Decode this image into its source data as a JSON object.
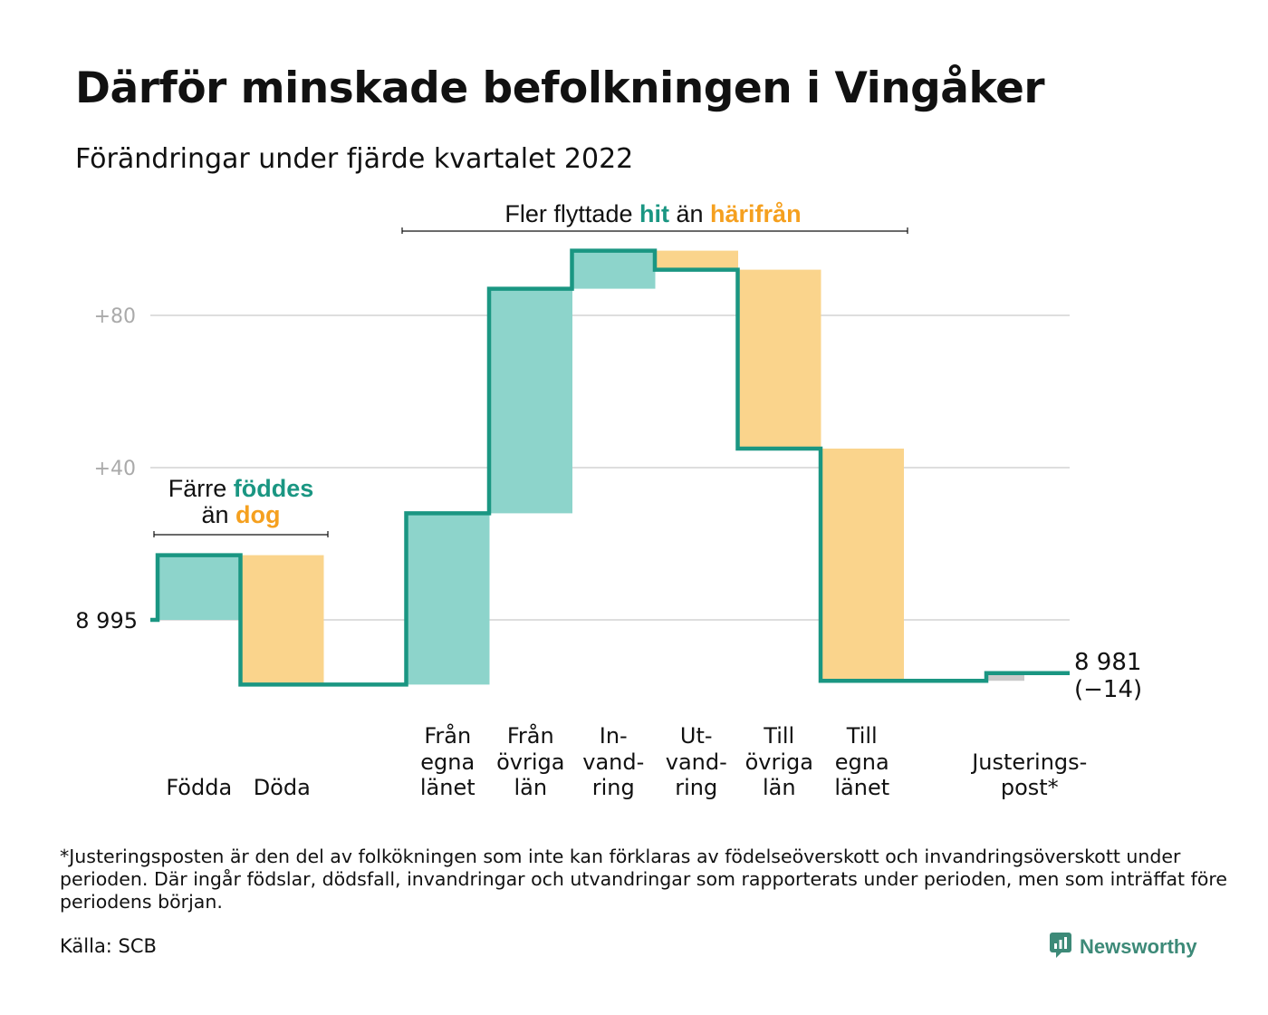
{
  "title": "Därför minskade befolkningen i Vingåker",
  "subtitle": "Förändringar under fjärde kvartalet 2022",
  "colors": {
    "in": "#8dd4cb",
    "out": "#fad48c",
    "line": "#1a9682",
    "adjust": "#c9c9c9",
    "grid": "#dedede",
    "tick": "#aaaaaa",
    "accent_in": "#1a9682",
    "accent_out": "#f5a01f"
  },
  "chart_data": {
    "type": "waterfall",
    "start_value": 8995,
    "start_label": "8 995",
    "end_label": "8 981",
    "end_change_label": "(−14)",
    "ylim": [
      -18,
      103
    ],
    "yticks": [
      {
        "value": 80,
        "label": "+80"
      },
      {
        "value": 40,
        "label": "+40"
      }
    ],
    "grid": true,
    "steps": [
      {
        "name": "Födda",
        "label": [
          "",
          "",
          "Födda"
        ],
        "change": 17,
        "kind": "in"
      },
      {
        "name": "Döda",
        "label": [
          "",
          "",
          "Döda"
        ],
        "change": -34,
        "kind": "out"
      },
      {
        "name": "gap",
        "label": [
          "",
          "",
          ""
        ],
        "change": 0,
        "kind": "gap"
      },
      {
        "name": "Från egna länet",
        "label": [
          "Från",
          "egna",
          "länet"
        ],
        "change": 45,
        "kind": "in"
      },
      {
        "name": "Från övriga län",
        "label": [
          "Från",
          "övriga",
          "län"
        ],
        "change": 59,
        "kind": "in"
      },
      {
        "name": "Invandring",
        "label": [
          "In-",
          "vand-",
          "ring"
        ],
        "change": 10,
        "kind": "in"
      },
      {
        "name": "Utvandring",
        "label": [
          "Ut-",
          "vand-",
          "ring"
        ],
        "change": -5,
        "kind": "out"
      },
      {
        "name": "Till övriga län",
        "label": [
          "Till",
          "övriga",
          "län"
        ],
        "change": -47,
        "kind": "out"
      },
      {
        "name": "Till egna länet",
        "label": [
          "Till",
          "egna",
          "länet"
        ],
        "change": -61,
        "kind": "out"
      },
      {
        "name": "gap",
        "label": [
          "",
          "",
          ""
        ],
        "change": 0,
        "kind": "gap"
      },
      {
        "name": "Justeringspost*",
        "label": [
          "",
          "Justerings-",
          "post*"
        ],
        "change": 2,
        "kind": "adjust"
      }
    ],
    "annotations": {
      "births": {
        "pre": "Färre ",
        "hl1": "föddes",
        "mid": "än ",
        "hl2": "dog"
      },
      "migration": {
        "pre": "Fler flyttade ",
        "hl1": "hit",
        "mid": " än ",
        "hl2": "härifrån"
      }
    }
  },
  "footnote": "*Justeringsposten är den del av folkökningen som inte kan förklaras av födelseöverskott och invandringsöverskott under perioden. Där ingår födslar, dödsfall, invandringar och utvandringar som rapporterats under perioden, men som inträffat före periodens början.",
  "source": "Källa: SCB",
  "brand": {
    "name": "Newsworthy",
    "icon": "newsworthy-logo-icon"
  }
}
